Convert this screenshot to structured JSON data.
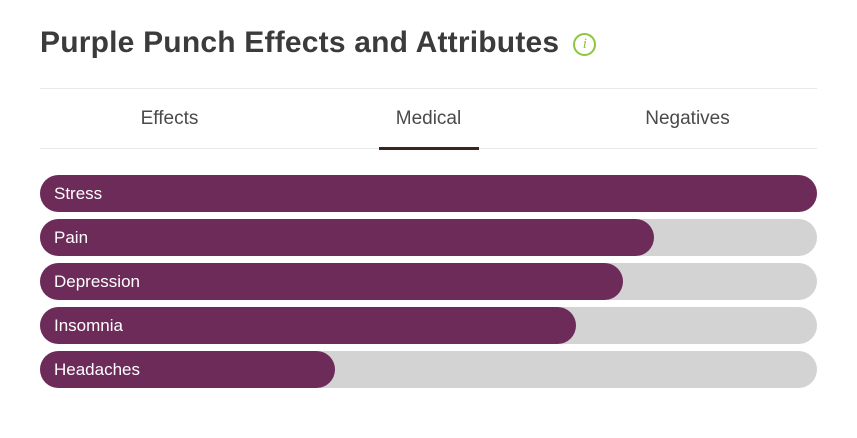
{
  "header": {
    "title": "Purple Punch Effects and Attributes",
    "info_icon_glyph": "i"
  },
  "tabs": [
    {
      "label": "Effects",
      "active": false
    },
    {
      "label": "Medical",
      "active": true
    },
    {
      "label": "Negatives",
      "active": false
    }
  ],
  "chart_data": {
    "type": "bar",
    "orientation": "horizontal",
    "title": "Purple Punch Effects and Attributes",
    "active_tab": "Medical",
    "categories": [
      "Stress",
      "Pain",
      "Depression",
      "Insomnia",
      "Headaches"
    ],
    "values": [
      100,
      79,
      75,
      69,
      38
    ],
    "xlim": [
      0,
      100
    ],
    "grid": false,
    "legend": false,
    "bar_color": "#6d2b5a",
    "track_color": "#d3d3d3",
    "label_color": "#ffffff"
  },
  "colors": {
    "info_green": "#8cc63e",
    "title_text": "#3b3b3b",
    "tab_text": "#4a4a4a",
    "active_tab_underline": "#3a241e",
    "divider": "#e8e8e8"
  }
}
